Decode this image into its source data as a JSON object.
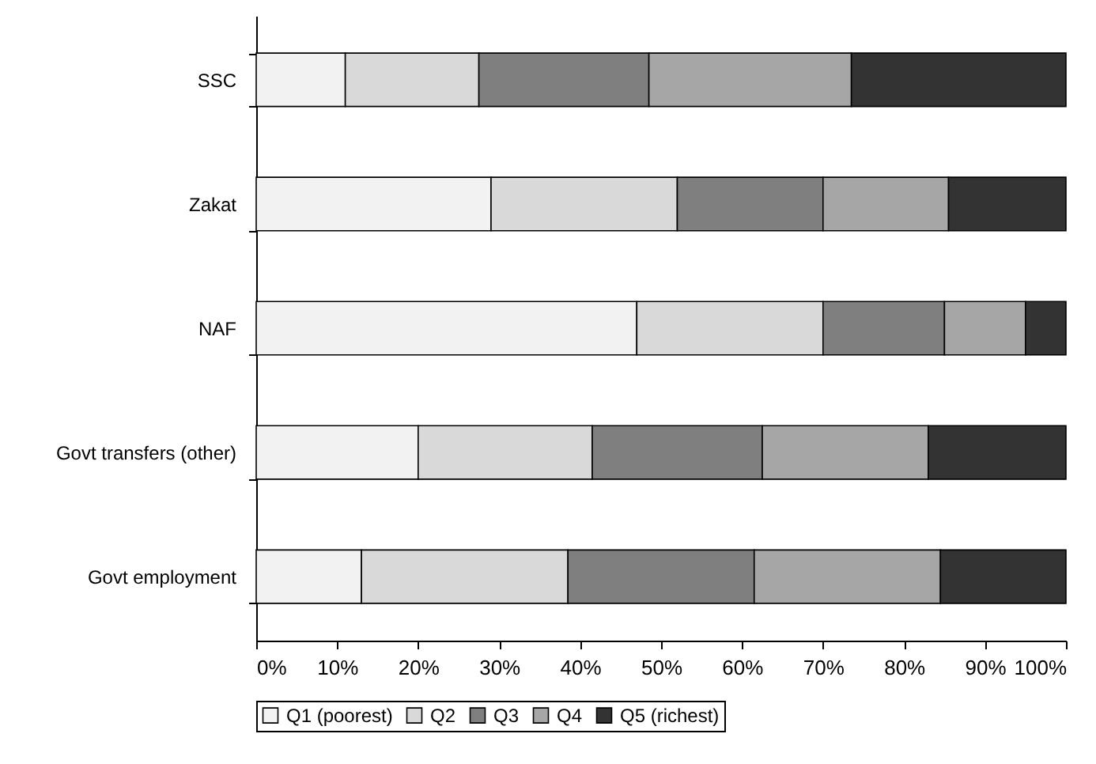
{
  "chart_data": {
    "type": "bar",
    "orientation": "horizontal",
    "stacked": true,
    "categories": [
      "SSC",
      "Zakat",
      "NAF",
      "Govt transfers (other)",
      "Govt employment"
    ],
    "series": [
      {
        "name": "Q1 (poorest)",
        "color": "#f2f2f2",
        "values": [
          11,
          29,
          47,
          20,
          13
        ]
      },
      {
        "name": "Q2",
        "color": "#d9d9d9",
        "values": [
          16.5,
          23,
          23,
          21.5,
          25.5
        ]
      },
      {
        "name": "Q3",
        "color": "#7f7f7f",
        "values": [
          21,
          18,
          15,
          21,
          23
        ]
      },
      {
        "name": "Q4",
        "color": "#a6a6a6",
        "values": [
          25,
          15.5,
          10,
          20.5,
          23
        ]
      },
      {
        "name": "Q5 (richest)",
        "color": "#333333",
        "values": [
          26.5,
          14.5,
          5,
          17,
          15.5
        ]
      }
    ],
    "xlim": [
      0,
      100
    ],
    "xticks": [
      {
        "value": 0,
        "label": "0%"
      },
      {
        "value": 10,
        "label": "10%"
      },
      {
        "value": 20,
        "label": "20%"
      },
      {
        "value": 30,
        "label": "30%"
      },
      {
        "value": 40,
        "label": "40%"
      },
      {
        "value": 50,
        "label": "50%"
      },
      {
        "value": 60,
        "label": "60%"
      },
      {
        "value": 70,
        "label": "70%"
      },
      {
        "value": 80,
        "label": "80%"
      },
      {
        "value": 90,
        "label": "90%"
      },
      {
        "value": 100,
        "label": "100%"
      }
    ],
    "legend": "bottom",
    "grid": false
  }
}
